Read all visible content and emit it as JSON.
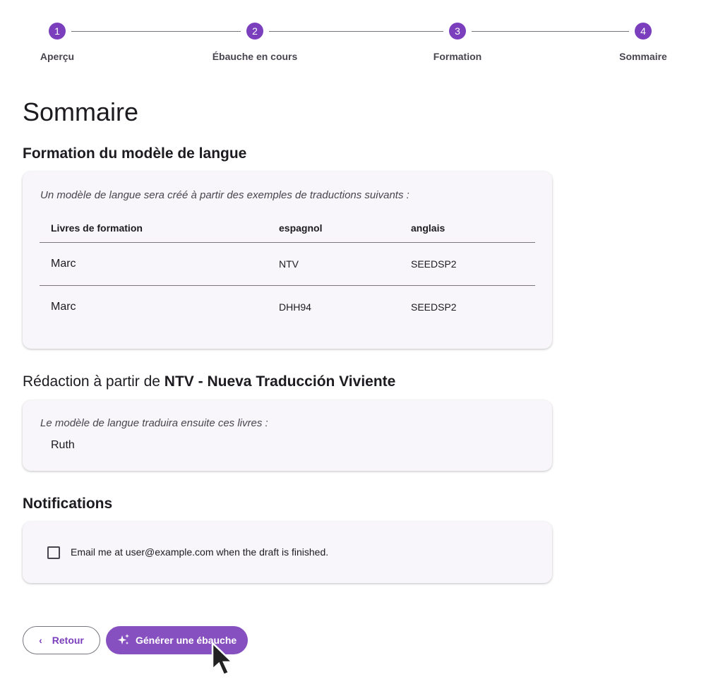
{
  "stepper": {
    "steps": [
      {
        "num": "1",
        "label": "Aperçu"
      },
      {
        "num": "2",
        "label": "Ébauche en cours"
      },
      {
        "num": "3",
        "label": "Formation"
      },
      {
        "num": "4",
        "label": "Sommaire"
      }
    ]
  },
  "page_title": "Sommaire",
  "training": {
    "heading": "Formation du modèle de langue",
    "intro": "Un modèle de langue sera créé à partir des exemples de traductions suivants :",
    "columns": [
      "Livres de formation",
      "espagnol",
      "anglais"
    ],
    "rows": [
      [
        "Marc",
        "NTV",
        "SEEDSP2"
      ],
      [
        "Marc",
        "DHH94",
        "SEEDSP2"
      ]
    ]
  },
  "drafting": {
    "heading_prefix": "Rédaction à partir de",
    "heading_source": "NTV - Nueva Traducción Viviente",
    "intro": "Le modèle de langue traduira ensuite ces livres :",
    "books": "Ruth"
  },
  "notifications": {
    "heading": "Notifications",
    "checkbox_label": "Email me at user@example.com when the draft is finished.",
    "checked": false
  },
  "buttons": {
    "back": "Retour",
    "generate": "Générer une ébauche"
  },
  "colors": {
    "accent": "#7b3fbe",
    "button": "#8750c0",
    "card": "#f8f6fb"
  }
}
